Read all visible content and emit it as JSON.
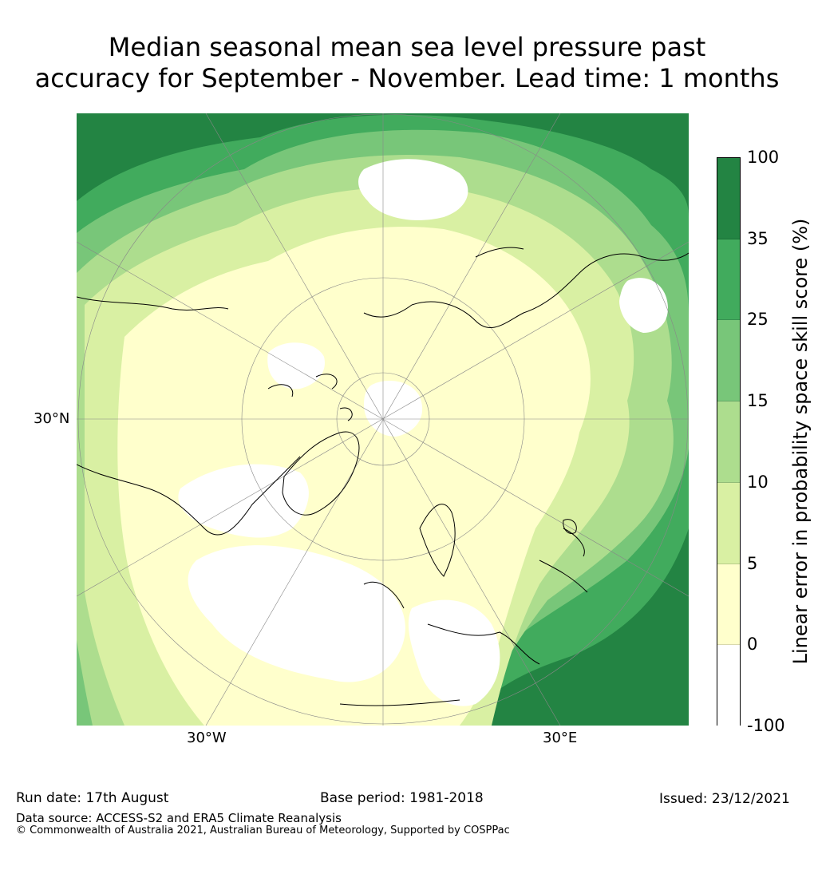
{
  "title": {
    "line1": "Median seasonal mean sea level pressure past",
    "line2": "accuracy for September - November. Lead time: 1 months"
  },
  "map": {
    "labels": {
      "lat": "30°N",
      "lon_west": "30°W",
      "lon_east": "30°E"
    },
    "colors": {
      "neg": "#ffffff",
      "c0_5": "#ffffcc",
      "c5_10": "#d9f0a3",
      "c10_15": "#addd8e",
      "c15_25": "#78c679",
      "c25_35": "#41ab5d",
      "c35_100": "#238443",
      "coast": "#000000",
      "grid": "#888888"
    }
  },
  "colorbar": {
    "title": "Linear error in probability space skill score (%)",
    "ticks": [
      "100",
      "35",
      "25",
      "15",
      "10",
      "5",
      "0",
      "-100"
    ],
    "colors": [
      "#238443",
      "#41ab5d",
      "#78c679",
      "#addd8e",
      "#d9f0a3",
      "#ffffcc",
      "#ffffff"
    ]
  },
  "footer": {
    "run_date": "Run date: 17th August",
    "base_period": "Base period: 1981-2018",
    "issued": "Issued: 23/12/2021",
    "source": "Data source: ACCESS-S2 and ERA5 Climate Reanalysis",
    "copyright": "© Commonwealth of Australia 2021, Australian Bureau of Meteorology, Supported by COSPPac"
  }
}
